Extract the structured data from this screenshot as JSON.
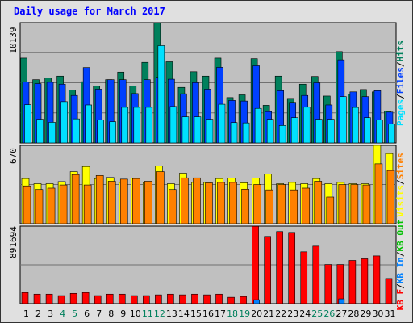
{
  "title": "Daily usage for March 2017",
  "colors": {
    "hits": "#00805c",
    "files": "#0040ff",
    "pages": "#00e0ff",
    "visits": "#ffff00",
    "sites": "#ff8000",
    "kbf": "#ff0000",
    "kbin": "#0080ff",
    "kbout": "#00c000",
    "weekend": "#00805c",
    "weekday": "#000000",
    "panel_bg": "#c0c0c0",
    "frame_bg": "#e0e0e0"
  },
  "chart_data": [
    {
      "type": "bar",
      "categories": [
        "1",
        "2",
        "3",
        "4",
        "5",
        "6",
        "7",
        "8",
        "9",
        "10",
        "11",
        "12",
        "13",
        "14",
        "15",
        "16",
        "17",
        "18",
        "19",
        "20",
        "21",
        "22",
        "23",
        "24",
        "25",
        "26",
        "27",
        "28",
        "29",
        "30",
        "31"
      ],
      "weekend_days": [
        "4",
        "5",
        "11",
        "12",
        "18",
        "19",
        "25",
        "26"
      ],
      "ymax_label": "10139",
      "ylim": [
        0,
        10139
      ],
      "grid": true,
      "legend": "right-vertical",
      "legend_labels": [
        "Pages",
        "Files",
        "Hits"
      ],
      "series": [
        {
          "name": "Hits",
          "values": [
            7150,
            5330,
            5470,
            5630,
            4470,
            5160,
            4810,
            5330,
            5970,
            4810,
            6790,
            10139,
            6840,
            4680,
            6000,
            5630,
            7150,
            3820,
            4050,
            7100,
            3170,
            5630,
            3750,
            4950,
            5600,
            3950,
            7700,
            4100,
            4500,
            4300,
            2700
          ]
        },
        {
          "name": "Files",
          "values": [
            5150,
            5000,
            5110,
            4950,
            4000,
            6350,
            4530,
            5330,
            5330,
            4160,
            5330,
            5530,
            5370,
            4140,
            5080,
            4530,
            6370,
            3580,
            3530,
            6500,
            2640,
            4400,
            3420,
            4000,
            5070,
            3200,
            7000,
            4300,
            3900,
            4400,
            2600
          ]
        },
        {
          "name": "Pages",
          "values": [
            3220,
            2000,
            1740,
            3480,
            2030,
            3200,
            1950,
            1790,
            3000,
            3000,
            3000,
            8200,
            3070,
            2200,
            2200,
            2000,
            3260,
            1720,
            1690,
            2910,
            2000,
            1470,
            2130,
            3010,
            2000,
            2000,
            3900,
            2990,
            2130,
            1950,
            1610
          ]
        }
      ]
    },
    {
      "type": "bar",
      "categories": [
        "1",
        "2",
        "3",
        "4",
        "5",
        "6",
        "7",
        "8",
        "9",
        "10",
        "11",
        "12",
        "13",
        "14",
        "15",
        "16",
        "17",
        "18",
        "19",
        "20",
        "21",
        "22",
        "23",
        "24",
        "25",
        "26",
        "27",
        "28",
        "29",
        "30",
        "31"
      ],
      "ymax_label": "670",
      "ylim": [
        0,
        670
      ],
      "grid": true,
      "legend": "right-vertical",
      "legend_labels": [
        "Visits",
        "Sites"
      ],
      "series": [
        {
          "name": "Visits",
          "values": [
            386,
            342,
            342,
            360,
            445,
            489,
            386,
            395,
            353,
            389,
            353,
            494,
            342,
            432,
            353,
            353,
            386,
            389,
            350,
            389,
            424,
            342,
            353,
            342,
            386,
            342,
            353,
            342,
            342,
            670,
            600
          ]
        },
        {
          "name": "Sites",
          "values": [
            323,
            292,
            304,
            331,
            420,
            331,
            412,
            363,
            381,
            386,
            363,
            445,
            292,
            392,
            392,
            349,
            353,
            353,
            295,
            335,
            289,
            335,
            289,
            304,
            363,
            228,
            335,
            335,
            331,
            512,
            455
          ]
        }
      ]
    },
    {
      "type": "bar",
      "categories": [
        "1",
        "2",
        "3",
        "4",
        "5",
        "6",
        "7",
        "8",
        "9",
        "10",
        "11",
        "12",
        "13",
        "14",
        "15",
        "16",
        "17",
        "18",
        "19",
        "20",
        "21",
        "22",
        "23",
        "24",
        "25",
        "26",
        "27",
        "28",
        "29",
        "30",
        "31"
      ],
      "ymax_label": "891694",
      "ylim": [
        0,
        891694
      ],
      "grid": true,
      "legend": "right-vertical",
      "legend_labels": [
        "KB F",
        "KB In",
        "KB Out"
      ],
      "series": [
        {
          "name": "KB F",
          "values": [
            128000,
            109000,
            109000,
            92000,
            118000,
            128000,
            92000,
            109000,
            109000,
            92000,
            92000,
            101000,
            109000,
            101000,
            109000,
            101000,
            109000,
            73000,
            82000,
            890000,
            773000,
            829000,
            819000,
            596000,
            661000,
            450000,
            450000,
            497000,
            516000,
            549000,
            289000
          ]
        },
        {
          "name": "KB In",
          "values": [
            0,
            0,
            0,
            0,
            0,
            0,
            0,
            0,
            0,
            0,
            0,
            0,
            0,
            0,
            0,
            0,
            0,
            0,
            0,
            45000,
            0,
            0,
            0,
            0,
            0,
            0,
            55000,
            0,
            0,
            0,
            0
          ]
        },
        {
          "name": "KB Out",
          "values": [
            0,
            0,
            0,
            0,
            0,
            0,
            0,
            0,
            0,
            0,
            0,
            0,
            0,
            0,
            0,
            0,
            0,
            0,
            0,
            0,
            0,
            0,
            0,
            0,
            0,
            0,
            0,
            0,
            0,
            0,
            0
          ]
        }
      ]
    }
  ]
}
